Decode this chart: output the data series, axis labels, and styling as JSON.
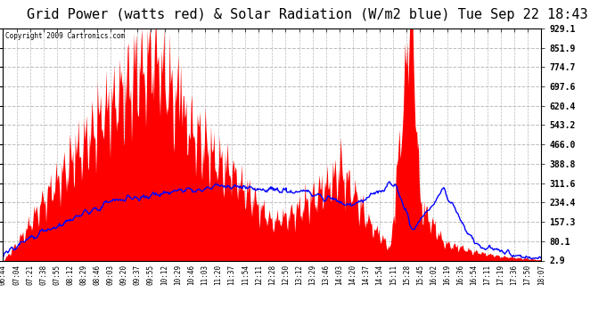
{
  "title": "Grid Power (watts red) & Solar Radiation (W/m2 blue) Tue Sep 22 18:43",
  "copyright": "Copyright 2009 Cartronics.com",
  "title_fontsize": 11,
  "yticks": [
    2.9,
    80.1,
    157.3,
    234.4,
    311.6,
    388.8,
    466.0,
    543.2,
    620.4,
    697.6,
    774.7,
    851.9,
    929.1
  ],
  "ymin": 2.9,
  "ymax": 929.1,
  "xtick_labels": [
    "06:44",
    "07:04",
    "07:21",
    "07:38",
    "07:55",
    "08:12",
    "08:29",
    "08:46",
    "09:03",
    "09:20",
    "09:37",
    "09:55",
    "10:12",
    "10:29",
    "10:46",
    "11:03",
    "11:20",
    "11:37",
    "11:54",
    "12:11",
    "12:28",
    "12:50",
    "13:12",
    "13:29",
    "13:46",
    "14:03",
    "14:20",
    "14:37",
    "14:54",
    "15:11",
    "15:28",
    "15:45",
    "16:02",
    "16:19",
    "16:36",
    "16:54",
    "17:11",
    "17:19",
    "17:36",
    "17:50",
    "18:07"
  ],
  "background_color": "#ffffff",
  "fill_color": "#ff0000",
  "line_color": "#0000ff",
  "grid_color": "#bbbbbb",
  "border_color": "#000000"
}
